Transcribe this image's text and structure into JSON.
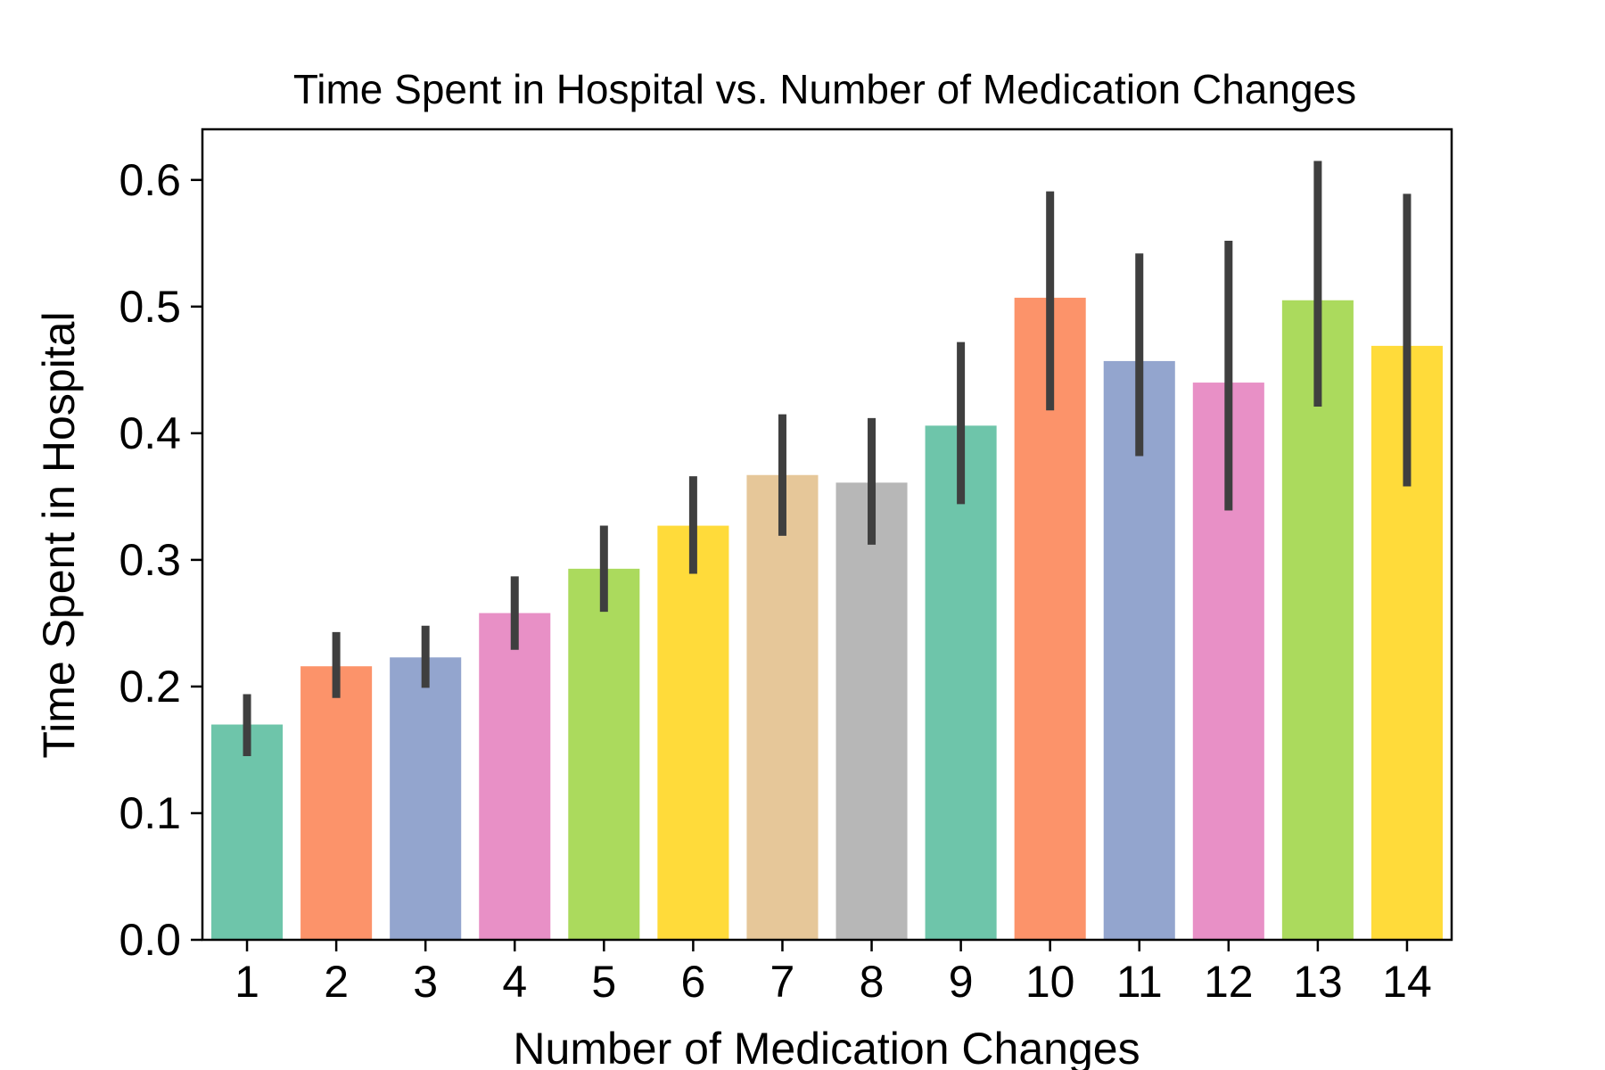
{
  "chart_data": {
    "type": "bar",
    "title": "Time Spent in Hospital vs. Number of Medication Changes",
    "xlabel": "Number of Medication Changes",
    "ylabel": "Time Spent in Hospital",
    "categories": [
      "1",
      "2",
      "3",
      "4",
      "5",
      "6",
      "7",
      "8",
      "9",
      "10",
      "11",
      "12",
      "13",
      "14"
    ],
    "values": [
      0.17,
      0.216,
      0.223,
      0.258,
      0.293,
      0.327,
      0.367,
      0.361,
      0.406,
      0.507,
      0.457,
      0.44,
      0.505,
      0.469
    ],
    "error_low": [
      0.145,
      0.191,
      0.199,
      0.229,
      0.259,
      0.289,
      0.319,
      0.312,
      0.344,
      0.418,
      0.382,
      0.339,
      0.421,
      0.358
    ],
    "error_high": [
      0.194,
      0.243,
      0.248,
      0.287,
      0.327,
      0.366,
      0.415,
      0.412,
      0.472,
      0.591,
      0.542,
      0.552,
      0.615,
      0.589
    ],
    "ylim": [
      0.0,
      0.64
    ],
    "yticks": [
      "0.0",
      "0.1",
      "0.2",
      "0.3",
      "0.4",
      "0.5",
      "0.6"
    ],
    "grid": false,
    "bar_colors": [
      "#66c2a5",
      "#fc8d62",
      "#8da0cb",
      "#e78ac3",
      "#a6d854",
      "#ffd92f",
      "#e5c494",
      "#b3b3b3",
      "#66c2a5",
      "#fc8d62",
      "#8da0cb",
      "#e78ac3",
      "#a6d854",
      "#ffd92f"
    ],
    "bar_alpha": 0.95,
    "errorbar_color": "#3f3f3f"
  }
}
